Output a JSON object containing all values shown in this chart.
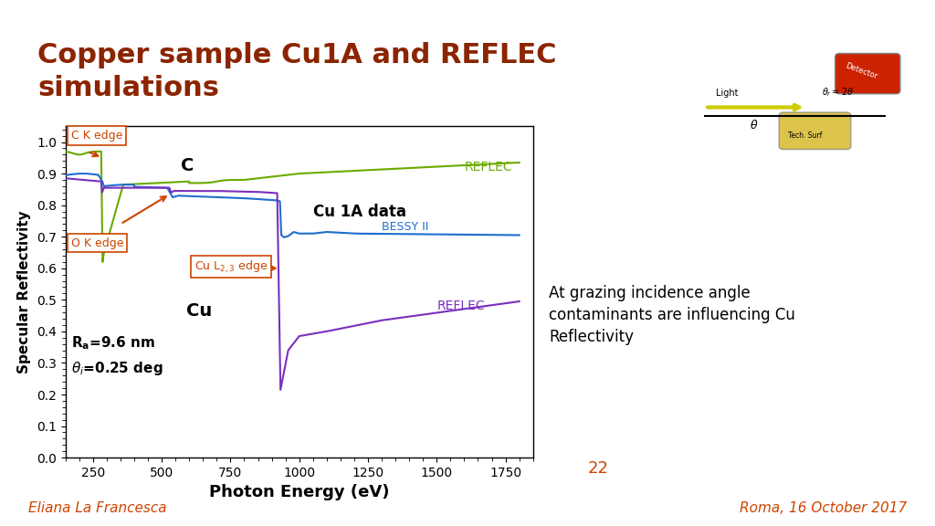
{
  "title": "Copper sample Cu1A and REFLEC\nsimulations",
  "title_color": "#8B2500",
  "xlabel": "Photon Energy (eV)",
  "ylabel": "Specular Reflectivity",
  "xlim": [
    150,
    1850
  ],
  "ylim": [
    0,
    1.05
  ],
  "yticks": [
    0,
    0.1,
    0.2,
    0.3,
    0.4,
    0.5,
    0.6,
    0.7,
    0.8,
    0.9,
    1
  ],
  "xticks": [
    250,
    500,
    750,
    1000,
    1250,
    1500,
    1750
  ],
  "bg_color": "#ffffff",
  "slide_bg": "#f5f0eb",
  "annotation_box_color": "#c8b89a",
  "annotation_text": "At grazing incidence angle\ncontaminants are influencing Cu\nReflectivity",
  "label_C_edge": "C K edge",
  "label_O_edge": "O K edge",
  "label_Cu_edge": "Cu L₂,₃ edge",
  "label_C": "C",
  "label_Cu1A": "Cu 1A data",
  "label_BESSY": "BESSY II",
  "label_REFLEC_green": "REFLEC",
  "label_Cu": "Cu",
  "label_REFLEC_purple": "REFLEC",
  "param_Ra": "Rₐ=9.6 nm",
  "param_theta": "θᵢ=0.25 deg",
  "edge_color": "#cc4400",
  "line_green_color": "#6aaa00",
  "line_blue_color": "#1e6ecc",
  "line_purple_color": "#7b2fbe",
  "annotation_arrow_color": "#cc4400",
  "page_number": "22",
  "footer_left": "Eliana La Francesca",
  "footer_right": "Roma, 16 October 2017",
  "footer_color": "#cc4400"
}
